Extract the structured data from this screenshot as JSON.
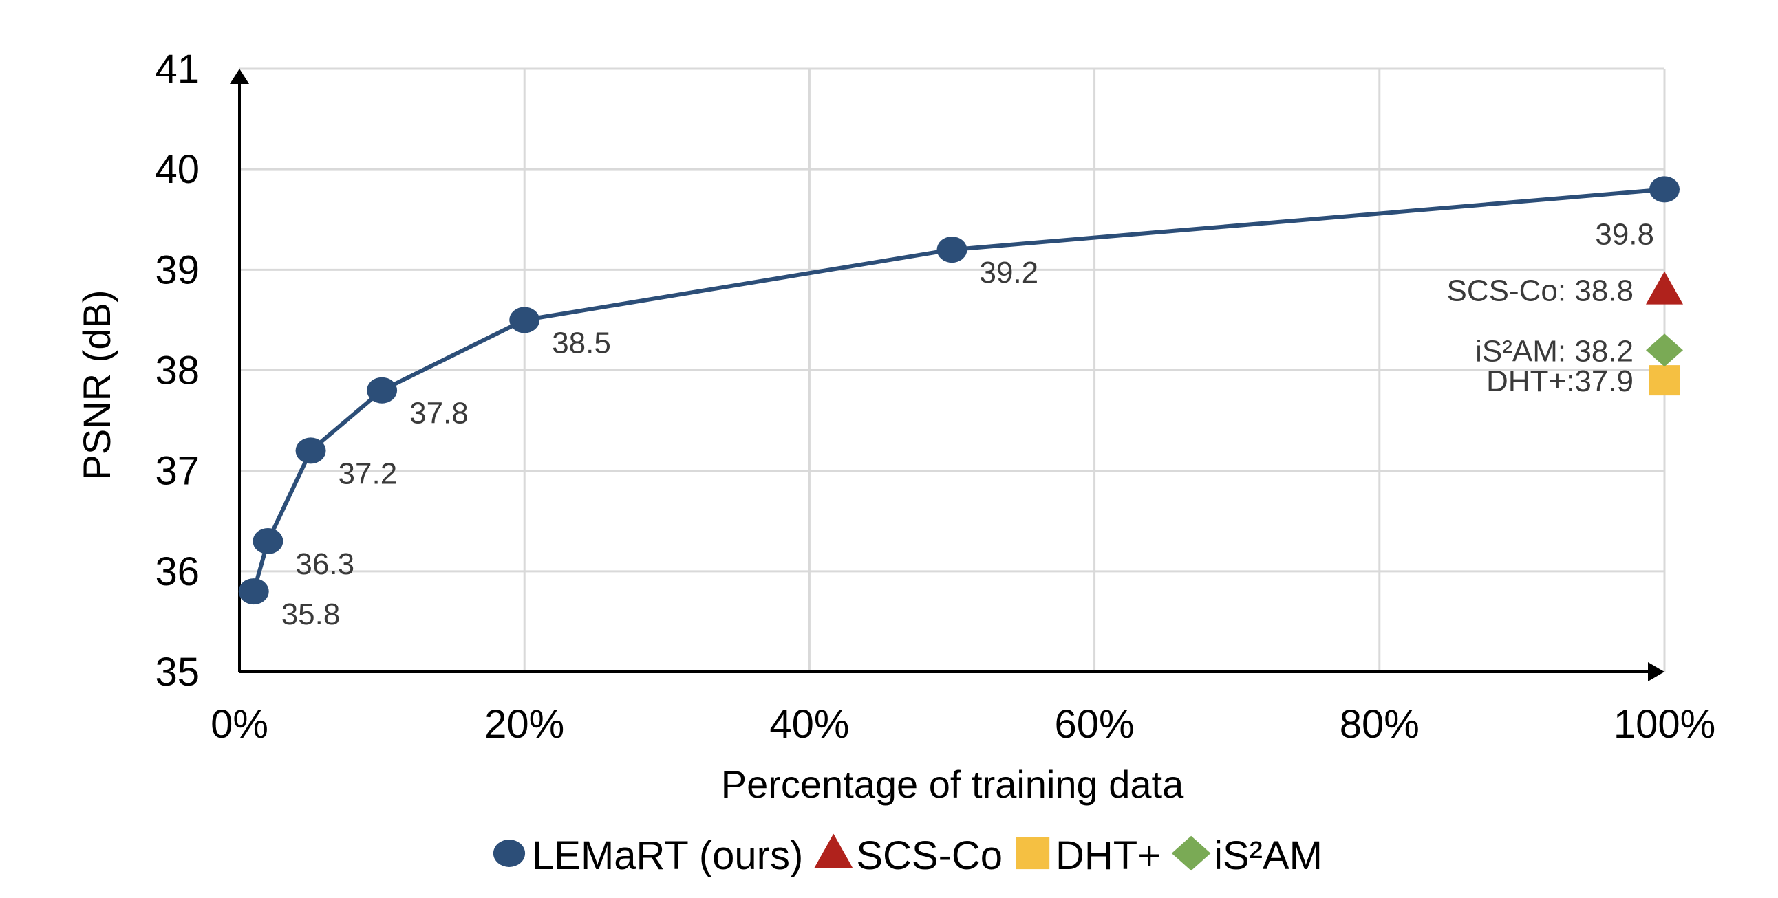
{
  "chart_data": {
    "type": "line",
    "title": "",
    "xlabel": "Percentage of training data",
    "ylabel": "PSNR (dB)",
    "xlim": [
      0,
      100
    ],
    "ylim": [
      35,
      41
    ],
    "grid": true,
    "legend_placement": "bottom",
    "x_ticks": [
      0,
      20,
      40,
      60,
      80,
      100
    ],
    "x_tick_labels": [
      "0%",
      "20%",
      "40%",
      "60%",
      "80%",
      "100%"
    ],
    "y_ticks": [
      35,
      36,
      37,
      38,
      39,
      40,
      41
    ],
    "y_tick_labels": [
      "35",
      "36",
      "37",
      "38",
      "39",
      "40",
      "41"
    ],
    "series": [
      {
        "name": "LEMaRT (ours)",
        "marker": "circle",
        "color": "#2c4e78",
        "x": [
          1,
          2,
          5,
          10,
          20,
          50,
          100
        ],
        "values": [
          35.8,
          36.3,
          37.2,
          37.8,
          38.5,
          39.2,
          39.8
        ],
        "labels": [
          "35.8",
          "36.3",
          "37.2",
          "37.8",
          "38.5",
          "39.2",
          "39.8"
        ]
      },
      {
        "name": "SCS-Co",
        "marker": "triangle",
        "color": "#b0221c",
        "x": [
          100
        ],
        "values": [
          38.8
        ],
        "labels": [
          "SCS-Co: 38.8"
        ]
      },
      {
        "name": "DHT+",
        "marker": "square",
        "color": "#f5c042",
        "x": [
          100
        ],
        "values": [
          37.9
        ],
        "labels": [
          "DHT+:37.9"
        ]
      },
      {
        "name": "iS²AM",
        "marker": "diamond",
        "color": "#7aaa55",
        "x": [
          100
        ],
        "values": [
          38.2
        ],
        "labels": [
          "iS²AM: 38.2"
        ]
      }
    ]
  }
}
